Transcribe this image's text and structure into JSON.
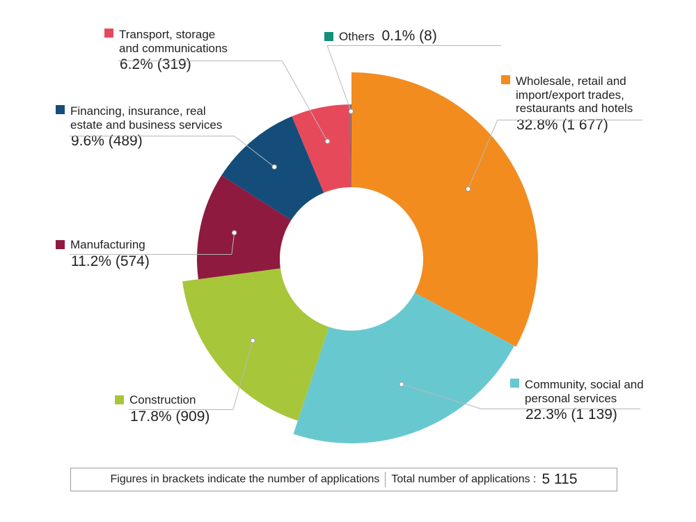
{
  "chart_data": {
    "type": "pie",
    "style": "donut",
    "slices": [
      {
        "name_lines": [
          "Wholesale, retail and",
          "import/export trades,",
          "restaurants and hotels"
        ],
        "percent": 32.8,
        "count": "1 677",
        "value_label": "32.8% (1 677)",
        "color": "#f28c1f"
      },
      {
        "name_lines": [
          "Community, social and",
          "personal services"
        ],
        "percent": 22.3,
        "count": "1 139",
        "value_label": "22.3% (1 139)",
        "color": "#68c8d0"
      },
      {
        "name_lines": [
          "Construction"
        ],
        "percent": 17.8,
        "count": "909",
        "value_label": "17.8% (909)",
        "color": "#a8c63a"
      },
      {
        "name_lines": [
          "Manufacturing"
        ],
        "percent": 11.2,
        "count": "574",
        "value_label": "11.2% (574)",
        "color": "#8e1a40"
      },
      {
        "name_lines": [
          "Financing, insurance, real",
          "estate and business services"
        ],
        "percent": 9.6,
        "count": "489",
        "value_label": "9.6% (489)",
        "color": "#144d7a"
      },
      {
        "name_lines": [
          "Transport, storage",
          "and communications"
        ],
        "percent": 6.2,
        "count": "319",
        "value_label": "6.2% (319)",
        "color": "#e64a5a"
      },
      {
        "name_lines": [
          "Others"
        ],
        "percent": 0.1,
        "count": "8",
        "value_label": "0.1% (8)",
        "color": "#138f7a"
      }
    ]
  },
  "footer": {
    "note": "Figures in brackets indicate the number of applications",
    "total_label": "Total number of applications :",
    "total_value": "5 115"
  }
}
